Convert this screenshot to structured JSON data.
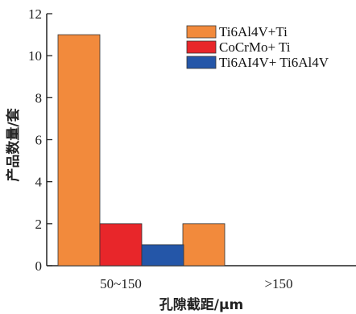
{
  "chart_data": {
    "type": "bar",
    "categories": [
      "50~150",
      ">150"
    ],
    "series": [
      {
        "name": "Ti6Al4V+Ti",
        "values": [
          11,
          2
        ],
        "color": "#F28A3C"
      },
      {
        "name": "CoCrMo+ Ti",
        "values": [
          2,
          0
        ],
        "color": "#E8262A"
      },
      {
        "name": "Ti6AI4V+ Ti6Al4V",
        "values": [
          1,
          0
        ],
        "color": "#2456A8"
      }
    ],
    "title": "",
    "xlabel": "孔隙截距/μm",
    "ylabel": "产品数量/套",
    "ylim": [
      0,
      12
    ],
    "yticks": [
      0,
      2,
      4,
      6,
      8,
      10,
      12
    ],
    "grid": false,
    "legend_position": "top-right"
  }
}
